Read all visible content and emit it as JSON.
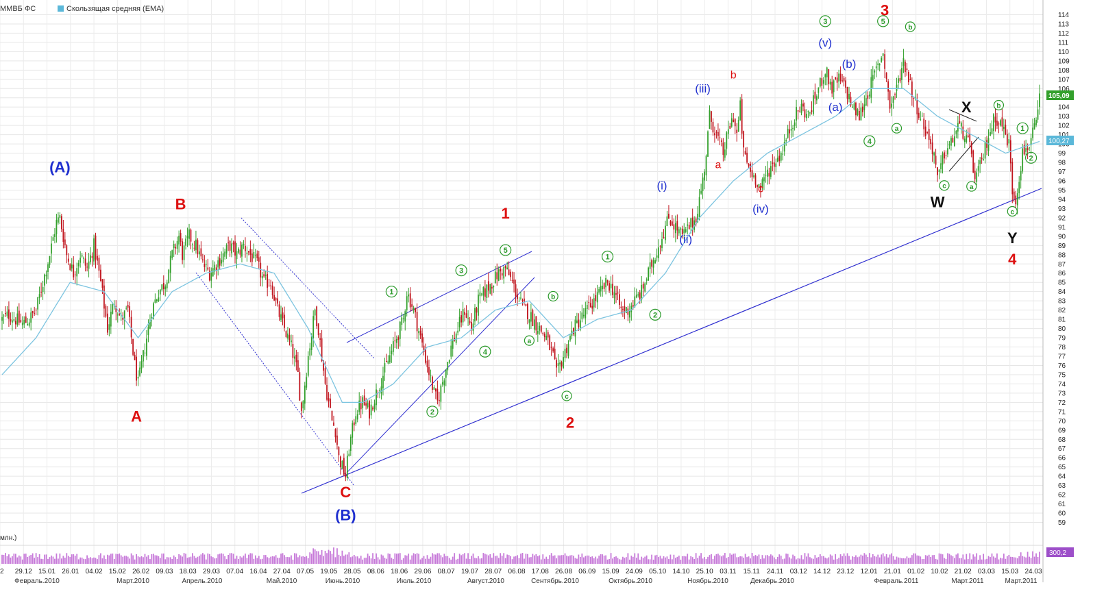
{
  "legend": {
    "instrument": "ММВБ ФС",
    "ema_label": "Скользящая средняя (EMA)",
    "ema_color": "#5bb8d9"
  },
  "volume_label": "млн.)",
  "colors": {
    "up": "#33a02c",
    "down": "#c0141d",
    "ema": "#7cc4e0",
    "trend": "#3030d0",
    "wave_red": "#dd1111",
    "wave_blue": "#1f2fcf",
    "wave_green": "#2a9a2a",
    "wave_black": "#111111"
  },
  "price_badges": {
    "last": "105,09",
    "ema": "100,27",
    "volume": "300,2"
  },
  "chart_data": {
    "type": "candlestick",
    "title": "",
    "ylim": [
      58,
      115
    ],
    "y_ticks": [
      59,
      60,
      61,
      62,
      63,
      64,
      65,
      66,
      67,
      68,
      69,
      70,
      71,
      72,
      73,
      74,
      75,
      76,
      77,
      78,
      79,
      80,
      81,
      82,
      83,
      84,
      85,
      86,
      87,
      88,
      89,
      90,
      91,
      92,
      93,
      94,
      95,
      96,
      97,
      98,
      99,
      100,
      101,
      102,
      103,
      104,
      105,
      106,
      107,
      108,
      109,
      110,
      111,
      112,
      113,
      114
    ],
    "date_ticks": [
      "2",
      "29.12",
      "15.01",
      "26.01",
      "04.02",
      "15.02",
      "26.02",
      "09.03",
      "18.03",
      "29.03",
      "07.04",
      "16.04",
      "27.04",
      "07.05",
      "19.05",
      "28.05",
      "08.06",
      "18.06",
      "29.06",
      "08.07",
      "19.07",
      "28.07",
      "06.08",
      "17.08",
      "26.08",
      "06.09",
      "15.09",
      "24.09",
      "05.10",
      "14.10",
      "25.10",
      "03.11",
      "15.11",
      "24.11",
      "03.12",
      "14.12",
      "23.12",
      "12.01",
      "21.01",
      "01.02",
      "10.02",
      "21.02",
      "03.03",
      "15.03",
      "24.03"
    ],
    "month_ticks": [
      "Февраль.2010",
      "Март.2010",
      "Апрель.2010",
      "Май.2010",
      "Июнь.2010",
      "Июль.2010",
      "Август.2010",
      "Сентябрь.2010",
      "Октябрь.2010",
      "Ноябрь.2010",
      "Декабрь.2010",
      "Февраль.2011",
      "Март.2011",
      "Март.2011"
    ],
    "price_path": [
      [
        0,
        81
      ],
      [
        4,
        81.5
      ],
      [
        8,
        81
      ],
      [
        12,
        80.5
      ],
      [
        16,
        81
      ],
      [
        20,
        82
      ],
      [
        24,
        85
      ],
      [
        28,
        88
      ],
      [
        32,
        91.5
      ],
      [
        34,
        92
      ],
      [
        38,
        88
      ],
      [
        42,
        86
      ],
      [
        46,
        88
      ],
      [
        50,
        86.5
      ],
      [
        54,
        89
      ],
      [
        58,
        85
      ],
      [
        62,
        80
      ],
      [
        66,
        83
      ],
      [
        70,
        81
      ],
      [
        74,
        82
      ],
      [
        78,
        76
      ],
      [
        80,
        74
      ],
      [
        84,
        78
      ],
      [
        88,
        82
      ],
      [
        92,
        84
      ],
      [
        96,
        85
      ],
      [
        100,
        88
      ],
      [
        104,
        90
      ],
      [
        106,
        88
      ],
      [
        110,
        90
      ],
      [
        114,
        89
      ],
      [
        118,
        87
      ],
      [
        122,
        86
      ],
      [
        126,
        87
      ],
      [
        130,
        88
      ],
      [
        134,
        89
      ],
      [
        138,
        88
      ],
      [
        142,
        89
      ],
      [
        146,
        88
      ],
      [
        150,
        87
      ],
      [
        154,
        85
      ],
      [
        158,
        85
      ],
      [
        162,
        82
      ],
      [
        166,
        80
      ],
      [
        170,
        78
      ],
      [
        174,
        75
      ],
      [
        176,
        71
      ],
      [
        180,
        77
      ],
      [
        184,
        82
      ],
      [
        186,
        80
      ],
      [
        190,
        74
      ],
      [
        194,
        70
      ],
      [
        196,
        69
      ],
      [
        198,
        66
      ],
      [
        200,
        65
      ],
      [
        202,
        64
      ],
      [
        204,
        67
      ],
      [
        208,
        71
      ],
      [
        212,
        72
      ],
      [
        216,
        71
      ],
      [
        220,
        73
      ],
      [
        224,
        75
      ],
      [
        228,
        77
      ],
      [
        232,
        79
      ],
      [
        236,
        81
      ],
      [
        238,
        84
      ],
      [
        242,
        82
      ],
      [
        246,
        79
      ],
      [
        250,
        76
      ],
      [
        254,
        73
      ],
      [
        256,
        72
      ],
      [
        260,
        75
      ],
      [
        264,
        78
      ],
      [
        268,
        80
      ],
      [
        272,
        82
      ],
      [
        276,
        80
      ],
      [
        280,
        83
      ],
      [
        284,
        84
      ],
      [
        288,
        85
      ],
      [
        292,
        86
      ],
      [
        296,
        86.5
      ],
      [
        300,
        85
      ],
      [
        304,
        83
      ],
      [
        308,
        82
      ],
      [
        312,
        81
      ],
      [
        316,
        80
      ],
      [
        320,
        79
      ],
      [
        324,
        77
      ],
      [
        326,
        75
      ],
      [
        328,
        76
      ],
      [
        332,
        78
      ],
      [
        336,
        80
      ],
      [
        340,
        81
      ],
      [
        344,
        82
      ],
      [
        348,
        83
      ],
      [
        352,
        84
      ],
      [
        356,
        85
      ],
      [
        360,
        84
      ],
      [
        364,
        82
      ],
      [
        368,
        82
      ],
      [
        372,
        83
      ],
      [
        376,
        84
      ],
      [
        380,
        86
      ],
      [
        384,
        88
      ],
      [
        388,
        90
      ],
      [
        392,
        92
      ],
      [
        396,
        91
      ],
      [
        400,
        90
      ],
      [
        404,
        91
      ],
      [
        408,
        92
      ],
      [
        412,
        96
      ],
      [
        414,
        99
      ],
      [
        416,
        103
      ],
      [
        420,
        101
      ],
      [
        424,
        99
      ],
      [
        428,
        102
      ],
      [
        430,
        103
      ],
      [
        432,
        101
      ],
      [
        434,
        104
      ],
      [
        436,
        99
      ],
      [
        440,
        97
      ],
      [
        444,
        96
      ],
      [
        446,
        95
      ],
      [
        450,
        97
      ],
      [
        454,
        98
      ],
      [
        458,
        99
      ],
      [
        462,
        101
      ],
      [
        466,
        103
      ],
      [
        470,
        104
      ],
      [
        474,
        103
      ],
      [
        478,
        105
      ],
      [
        482,
        107
      ],
      [
        484,
        108
      ],
      [
        488,
        106
      ],
      [
        492,
        107
      ],
      [
        496,
        106
      ],
      [
        500,
        104
      ],
      [
        504,
        103
      ],
      [
        508,
        105
      ],
      [
        512,
        107
      ],
      [
        516,
        109
      ],
      [
        518,
        110
      ],
      [
        522,
        104
      ],
      [
        526,
        106
      ],
      [
        530,
        109
      ],
      [
        532,
        108
      ],
      [
        536,
        105
      ],
      [
        540,
        103
      ],
      [
        544,
        101
      ],
      [
        548,
        99
      ],
      [
        550,
        96
      ],
      [
        554,
        99
      ],
      [
        558,
        100
      ],
      [
        562,
        102
      ],
      [
        566,
        101
      ],
      [
        570,
        99
      ],
      [
        572,
        96
      ],
      [
        576,
        98
      ],
      [
        580,
        101
      ],
      [
        584,
        103
      ],
      [
        588,
        102
      ],
      [
        592,
        100
      ],
      [
        594,
        95
      ],
      [
        596,
        94
      ],
      [
        600,
        99
      ],
      [
        604,
        100
      ],
      [
        608,
        102
      ],
      [
        610,
        105
      ]
    ],
    "ema_anchor": [
      [
        0,
        75
      ],
      [
        20,
        79
      ],
      [
        40,
        85
      ],
      [
        60,
        84
      ],
      [
        80,
        79
      ],
      [
        100,
        84
      ],
      [
        120,
        86
      ],
      [
        140,
        87
      ],
      [
        160,
        86
      ],
      [
        180,
        80
      ],
      [
        200,
        72
      ],
      [
        212,
        72
      ],
      [
        230,
        74
      ],
      [
        250,
        78
      ],
      [
        270,
        79
      ],
      [
        290,
        82
      ],
      [
        310,
        83
      ],
      [
        330,
        79
      ],
      [
        350,
        81
      ],
      [
        370,
        82
      ],
      [
        390,
        86
      ],
      [
        410,
        92
      ],
      [
        430,
        96
      ],
      [
        450,
        99
      ],
      [
        470,
        101
      ],
      [
        490,
        103
      ],
      [
        510,
        106
      ],
      [
        530,
        106
      ],
      [
        550,
        103
      ],
      [
        570,
        101
      ],
      [
        590,
        99
      ],
      [
        610,
        100.27
      ]
    ],
    "waves": [
      {
        "t": "(A)",
        "c": "wave_blue",
        "style": "bold",
        "i": 34,
        "p": 97.5
      },
      {
        "t": "A",
        "c": "wave_red",
        "style": "bold",
        "i": 79,
        "p": 70.5
      },
      {
        "t": "B",
        "c": "wave_red",
        "style": "bold",
        "i": 105,
        "p": 93.5
      },
      {
        "t": "C",
        "c": "wave_red",
        "style": "bold",
        "i": 202,
        "p": 62.3
      },
      {
        "t": "(B)",
        "c": "wave_blue",
        "style": "bold",
        "i": 202,
        "p": 59.8
      },
      {
        "t": "1",
        "c": "wave_red",
        "style": "bold",
        "i": 296,
        "p": 92.5
      },
      {
        "t": "2",
        "c": "wave_red",
        "style": "bold",
        "i": 334,
        "p": 69.8
      },
      {
        "t": "3",
        "c": "wave_red",
        "style": "bold",
        "i": 519,
        "p": 114.5
      },
      {
        "t": "4",
        "c": "wave_red",
        "style": "bold",
        "i": 594,
        "p": 87.5
      },
      {
        "t": "W",
        "c": "wave_black",
        "style": "bold",
        "i": 550,
        "p": 93.7
      },
      {
        "t": "X",
        "c": "wave_black",
        "style": "bold",
        "i": 567,
        "p": 104
      },
      {
        "t": "Y",
        "c": "wave_black",
        "style": "bold",
        "i": 594,
        "p": 89.8
      },
      {
        "t": "(i)",
        "c": "wave_blue",
        "style": "roman",
        "i": 388,
        "p": 95.5
      },
      {
        "t": "(ii)",
        "c": "wave_blue",
        "style": "roman",
        "i": 402,
        "p": 89.7
      },
      {
        "t": "(iii)",
        "c": "wave_blue",
        "style": "roman",
        "i": 412,
        "p": 106
      },
      {
        "t": "(iv)",
        "c": "wave_blue",
        "style": "roman",
        "i": 446,
        "p": 93
      },
      {
        "t": "(v)",
        "c": "wave_blue",
        "style": "roman",
        "i": 484,
        "p": 111
      },
      {
        "t": "(a)",
        "c": "wave_blue",
        "style": "roman",
        "i": 490,
        "p": 104
      },
      {
        "t": "(b)",
        "c": "wave_blue",
        "style": "roman",
        "i": 498,
        "p": 108.7
      },
      {
        "t": "a",
        "c": "wave_red",
        "style": "small",
        "i": 421,
        "p": 97.8
      },
      {
        "t": "b",
        "c": "wave_red",
        "style": "small",
        "i": 430,
        "p": 107.5
      },
      {
        "t": "c",
        "c": "wave_red",
        "style": "small",
        "i": 446,
        "p": 95.2
      },
      {
        "t": "1",
        "c": "wave_green",
        "style": "circled",
        "i": 229,
        "p": 84
      },
      {
        "t": "2",
        "c": "wave_green",
        "style": "circled",
        "i": 253,
        "p": 71
      },
      {
        "t": "3",
        "c": "wave_green",
        "style": "circled",
        "i": 270,
        "p": 86.3
      },
      {
        "t": "4",
        "c": "wave_green",
        "style": "circled",
        "i": 284,
        "p": 77.5
      },
      {
        "t": "5",
        "c": "wave_green",
        "style": "circled",
        "i": 296,
        "p": 88.5
      },
      {
        "t": "1",
        "c": "wave_green",
        "style": "circled",
        "i": 356,
        "p": 87.8
      },
      {
        "t": "2",
        "c": "wave_green",
        "style": "circled",
        "i": 384,
        "p": 81.5
      },
      {
        "t": "3",
        "c": "wave_green",
        "style": "circled",
        "i": 484,
        "p": 113.3
      },
      {
        "t": "4",
        "c": "wave_green",
        "style": "circled",
        "i": 510,
        "p": 100.3
      },
      {
        "t": "5",
        "c": "wave_green",
        "style": "circled",
        "i": 518,
        "p": 113.3
      },
      {
        "t": "1",
        "c": "wave_green",
        "style": "circled",
        "i": 600,
        "p": 101.7
      },
      {
        "t": "2",
        "c": "wave_green",
        "style": "circled",
        "i": 605,
        "p": 98.5
      },
      {
        "t": "a",
        "c": "wave_green",
        "style": "circled-small",
        "i": 310,
        "p": 78.7
      },
      {
        "t": "b",
        "c": "wave_green",
        "style": "circled-small",
        "i": 324,
        "p": 83.5
      },
      {
        "t": "c",
        "c": "wave_green",
        "style": "circled-small",
        "i": 332,
        "p": 72.7
      },
      {
        "t": "a",
        "c": "wave_green",
        "style": "circled-small",
        "i": 526,
        "p": 101.7
      },
      {
        "t": "b",
        "c": "wave_green",
        "style": "circled-small",
        "i": 534,
        "p": 112.7
      },
      {
        "t": "c",
        "c": "wave_green",
        "style": "circled-small",
        "i": 554,
        "p": 95.5
      },
      {
        "t": "a",
        "c": "wave_green",
        "style": "circled-small",
        "i": 570,
        "p": 95.4
      },
      {
        "t": "b",
        "c": "wave_green",
        "style": "circled-small",
        "i": 586,
        "p": 104.2
      },
      {
        "t": "c",
        "c": "wave_green",
        "style": "circled-small",
        "i": 594,
        "p": 92.7
      }
    ]
  }
}
